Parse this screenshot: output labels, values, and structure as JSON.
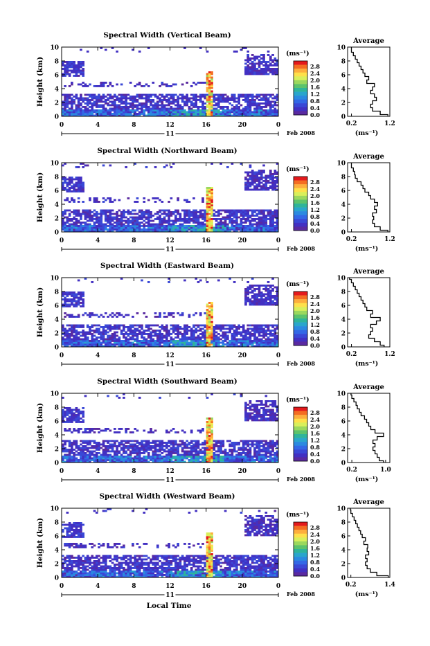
{
  "figure": {
    "x_axis_title": "Local Time",
    "month_label": "Feb 2008",
    "date_label": "11",
    "colorbar_unit": "(ms⁻¹)",
    "average_title": "Average",
    "average_unit": "(ms⁻¹)"
  },
  "colorbar": {
    "ticks": [
      "2.8",
      "2.4",
      "2.0",
      "1.6",
      "1.2",
      "0.8",
      "0.4",
      "0.0"
    ],
    "colors": [
      "#e41a1c",
      "#f46d22",
      "#fdae3d",
      "#fee04a",
      "#d9ef5b",
      "#9bd85e",
      "#5cc36c",
      "#2fb49a",
      "#2aa6cc",
      "#2b8ae0",
      "#3368e6",
      "#3a48d6",
      "#4230c2",
      "#5a2aa0"
    ]
  },
  "chart_data": [
    {
      "type": "heatmap",
      "title": "Spectral Width (Vertical Beam)",
      "xlabel": "Local Time",
      "ylabel": "Height (km)",
      "xlim": [
        0,
        24
      ],
      "ylim": [
        0,
        10
      ],
      "xticks": [
        "0",
        "4",
        "8",
        "12",
        "16",
        "20",
        "0"
      ],
      "yticks": [
        "0",
        "2",
        "4",
        "6",
        "8",
        "10"
      ],
      "zlim": [
        0,
        3.0
      ],
      "average_profile": {
        "xlim": [
          0.1,
          1.2
        ],
        "xticks": [
          "0.2",
          "1.2"
        ],
        "ylim": [
          0,
          10
        ],
        "height_km": [
          0,
          0.5,
          1,
          1.5,
          2,
          2.5,
          3,
          3.5,
          4,
          4.5,
          5,
          5.5,
          6,
          6.5,
          7,
          7.5,
          8,
          8.5,
          9,
          9.5,
          10
        ],
        "value": [
          1.15,
          0.95,
          0.75,
          0.7,
          0.75,
          0.85,
          0.8,
          0.7,
          0.75,
          0.8,
          0.6,
          0.65,
          0.55,
          0.5,
          0.45,
          0.4,
          0.35,
          0.3,
          0.25,
          0.2,
          0.2
        ]
      }
    },
    {
      "type": "heatmap",
      "title": "Spectral Width (Northward Beam)",
      "xlabel": "Local Time",
      "ylabel": "Height (km)",
      "xlim": [
        0,
        24
      ],
      "ylim": [
        0,
        10
      ],
      "xticks": [
        "0",
        "4",
        "8",
        "12",
        "16",
        "20",
        "0"
      ],
      "yticks": [
        "0",
        "2",
        "4",
        "6",
        "8",
        "10"
      ],
      "zlim": [
        0,
        3.0
      ],
      "average_profile": {
        "xlim": [
          0.1,
          1.2
        ],
        "xticks": [
          "0.2",
          "1.2"
        ],
        "ylim": [
          0,
          10
        ],
        "height_km": [
          0,
          0.5,
          1,
          1.5,
          2,
          2.5,
          3,
          3.5,
          4,
          4.5,
          5,
          5.5,
          6,
          6.5,
          7,
          7.5,
          8,
          8.5,
          9,
          9.5,
          10
        ],
        "value": [
          1.15,
          0.95,
          0.8,
          0.75,
          0.78,
          0.75,
          0.85,
          0.8,
          0.88,
          0.8,
          0.7,
          0.65,
          0.55,
          0.5,
          0.45,
          0.35,
          0.3,
          0.28,
          0.25,
          0.2,
          0.2
        ]
      }
    },
    {
      "type": "heatmap",
      "title": "Spectral Width (Eastward Beam)",
      "xlabel": "Local Time",
      "ylabel": "Height (km)",
      "xlim": [
        0,
        24
      ],
      "ylim": [
        0,
        10
      ],
      "xticks": [
        "0",
        "4",
        "8",
        "12",
        "16",
        "20",
        "0"
      ],
      "yticks": [
        "0",
        "2",
        "4",
        "6",
        "8",
        "10"
      ],
      "zlim": [
        0,
        3.0
      ],
      "average_profile": {
        "xlim": [
          0.1,
          1.2
        ],
        "xticks": [
          "0.2",
          "1.2"
        ],
        "ylim": [
          0,
          10
        ],
        "height_km": [
          0,
          0.5,
          1,
          1.5,
          2,
          2.5,
          3,
          3.5,
          4,
          4.5,
          5,
          5.5,
          6,
          6.5,
          7,
          7.5,
          8,
          8.5,
          9,
          9.5,
          10
        ],
        "value": [
          1.05,
          0.95,
          0.8,
          0.65,
          0.7,
          0.75,
          0.7,
          0.85,
          0.95,
          0.7,
          0.75,
          0.6,
          0.55,
          0.5,
          0.45,
          0.4,
          0.35,
          0.3,
          0.25,
          0.2,
          0.15
        ]
      }
    },
    {
      "type": "heatmap",
      "title": "Spectral Width (Southward Beam)",
      "xlabel": "Local Time",
      "ylabel": "Height (km)",
      "xlim": [
        0,
        24
      ],
      "ylim": [
        0,
        10
      ],
      "xticks": [
        "0",
        "4",
        "8",
        "12",
        "16",
        "20",
        "0"
      ],
      "yticks": [
        "0",
        "2",
        "4",
        "6",
        "8",
        "10"
      ],
      "zlim": [
        0,
        3.0
      ],
      "average_profile": {
        "xlim": [
          0.1,
          1.1
        ],
        "xticks": [
          "0.2",
          "1.0"
        ],
        "ylim": [
          0,
          10
        ],
        "height_km": [
          0,
          0.5,
          1,
          1.5,
          2,
          2.5,
          3,
          3.5,
          4,
          4.5,
          5,
          5.5,
          6,
          6.5,
          7,
          7.5,
          8,
          8.5,
          9,
          9.5,
          10
        ],
        "value": [
          0.95,
          0.85,
          0.8,
          0.75,
          0.7,
          0.75,
          0.7,
          0.8,
          0.95,
          0.75,
          0.65,
          0.6,
          0.55,
          0.5,
          0.42,
          0.38,
          0.33,
          0.3,
          0.25,
          0.2,
          0.18
        ]
      }
    },
    {
      "type": "heatmap",
      "title": "Spectral Width (Westward Beam)",
      "xlabel": "Local Time",
      "ylabel": "Height (km)",
      "xlim": [
        0,
        24
      ],
      "ylim": [
        0,
        10
      ],
      "xticks": [
        "0",
        "4",
        "8",
        "12",
        "16",
        "20",
        "0"
      ],
      "yticks": [
        "0",
        "2",
        "4",
        "6",
        "8",
        "10"
      ],
      "zlim": [
        0,
        3.0
      ],
      "average_profile": {
        "xlim": [
          0.1,
          1.4
        ],
        "xticks": [
          "0.2",
          "1.4"
        ],
        "ylim": [
          0,
          10
        ],
        "height_km": [
          0,
          0.5,
          1,
          1.5,
          2,
          2.5,
          3,
          3.5,
          4,
          4.5,
          5,
          5.5,
          6,
          6.5,
          7,
          7.5,
          8,
          8.5,
          9,
          9.5,
          10
        ],
        "value": [
          1.35,
          1.0,
          0.8,
          0.7,
          0.65,
          0.7,
          0.65,
          0.75,
          0.7,
          0.72,
          0.6,
          0.65,
          0.55,
          0.5,
          0.45,
          0.4,
          0.35,
          0.3,
          0.25,
          0.2,
          0.18
        ]
      }
    }
  ]
}
